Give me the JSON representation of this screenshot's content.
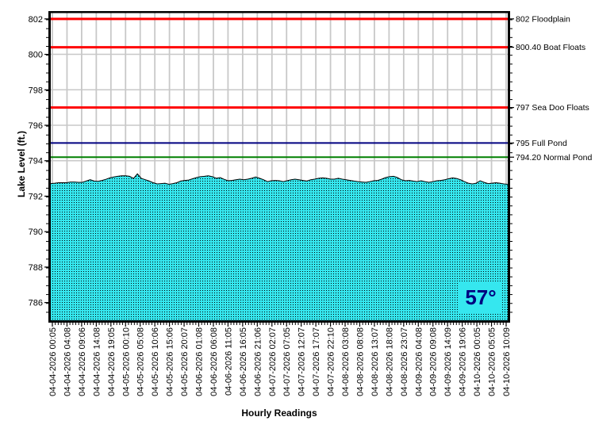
{
  "chart_data": {
    "type": "area",
    "title": "",
    "xlabel": "Hourly Readings",
    "ylabel": "Lake Level (ft.)",
    "ylim": [
      785.0,
      802.35
    ],
    "grid": true,
    "legend_position": "none",
    "y_major_ticks": [
      802,
      800,
      798,
      796,
      794,
      792,
      790,
      788,
      786
    ],
    "y_minor_step": 0.5,
    "x_minor_divisions": 5,
    "x_tick_labels": [
      "04-04-2026 00:05",
      "04-04-2026 04:08",
      "04-04-2026 09:06",
      "04-04-2026 14:08",
      "04-04-2026 19:05",
      "04-05-2026 00:10",
      "04-05-2026 05:08",
      "04-05-2026 10:06",
      "04-05-2026 15:06",
      "04-05-2026 20:07",
      "04-06-2026 01:08",
      "04-06-2026 06:08",
      "04-06-2026 11:05",
      "04-06-2026 16:05",
      "04-06-2026 21:06",
      "04-07-2026 02:07",
      "04-07-2026 07:05",
      "04-07-2026 12:07",
      "04-07-2026 17:07",
      "04-07-2026 22:10",
      "04-08-2026 03:08",
      "04-08-2026 08:08",
      "04-08-2026 13:07",
      "04-08-2026 18:08",
      "04-08-2026 23:07",
      "04-09-2026 04:08",
      "04-09-2026 09:08",
      "04-09-2026 14:09",
      "04-09-2026 19:06",
      "04-10-2026 00:05",
      "04-10-2026 05:05",
      "04-10-2026 10:09"
    ],
    "series": [
      {
        "name": "Lake Level",
        "values": [
          792.71,
          792.73,
          792.76,
          792.76,
          792.76,
          792.8,
          792.8,
          792.78,
          792.78,
          792.85,
          792.93,
          792.85,
          792.84,
          792.89,
          792.95,
          793.03,
          793.08,
          793.12,
          793.15,
          793.15,
          793.12,
          793.0,
          793.26,
          793.0,
          792.93,
          792.85,
          792.76,
          792.69,
          792.71,
          792.73,
          792.67,
          792.71,
          792.76,
          792.85,
          792.89,
          792.91,
          792.98,
          793.05,
          793.1,
          793.12,
          793.15,
          793.1,
          793.01,
          793.05,
          792.95,
          792.87,
          792.89,
          792.93,
          792.96,
          792.93,
          792.96,
          793.01,
          793.08,
          793.01,
          792.93,
          792.82,
          792.87,
          792.89,
          792.87,
          792.82,
          792.87,
          792.93,
          792.96,
          792.93,
          792.89,
          792.85,
          792.93,
          792.96,
          793.01,
          793.03,
          793.01,
          792.96,
          792.96,
          793.01,
          792.96,
          792.93,
          792.89,
          792.85,
          792.82,
          792.8,
          792.78,
          792.82,
          792.87,
          792.89,
          792.96,
          793.05,
          793.1,
          793.12,
          793.05,
          792.93,
          792.87,
          792.89,
          792.85,
          792.82,
          792.87,
          792.82,
          792.78,
          792.82,
          792.87,
          792.89,
          792.93,
          792.98,
          793.03,
          793.0,
          792.93,
          792.82,
          792.73,
          792.69,
          792.73,
          792.87,
          792.78,
          792.71,
          792.73,
          792.76,
          792.73,
          792.69,
          792.67
        ]
      }
    ],
    "reference_lines": [
      {
        "value": 802.0,
        "label": "802 Floodplain",
        "color": "#ff0000",
        "width": 3
      },
      {
        "value": 800.4,
        "label": "800.40 Boat Floats",
        "color": "#ff0000",
        "width": 3
      },
      {
        "value": 797.0,
        "label": "797 Sea Doo Floats",
        "color": "#ff0000",
        "width": 3
      },
      {
        "value": 795.0,
        "label": "795 Full Pond",
        "color": "#000080",
        "width": 2
      },
      {
        "value": 794.2,
        "label": "794.20 Normal Pond",
        "color": "#008000",
        "width": 2
      }
    ],
    "colors": {
      "area_fill": "#35e7ef",
      "area_dots": "#000000",
      "area_edge": "#000000",
      "grid": "#c8c8c8",
      "axis": "#000000",
      "tick_text": "#000000"
    }
  },
  "temperature": {
    "value": "57°",
    "text_color": "#000080",
    "box_color": "#35e7ef"
  }
}
